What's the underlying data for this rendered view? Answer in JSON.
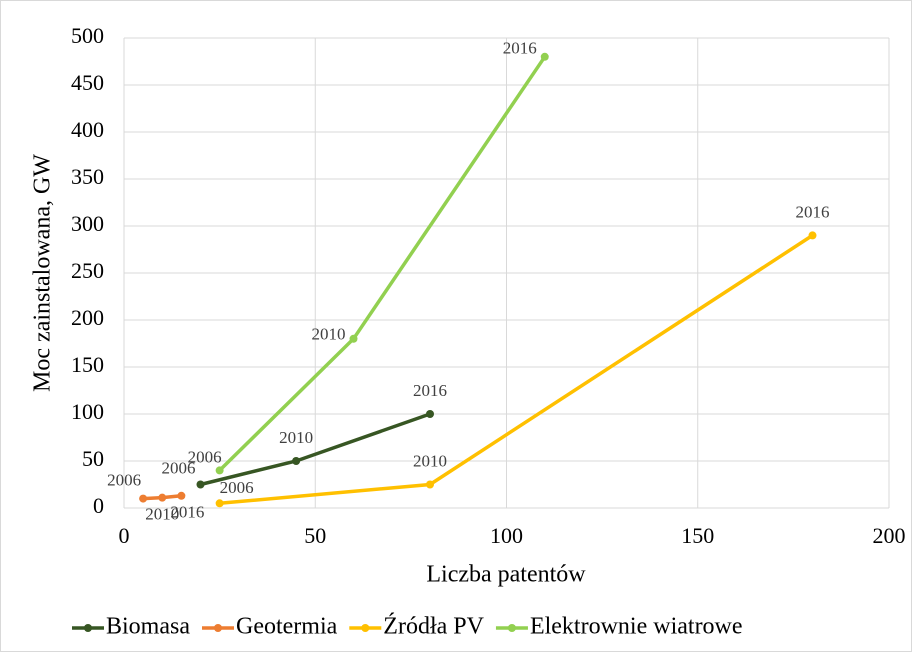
{
  "chart_data": {
    "type": "line",
    "x_label": "Liczba patentów",
    "y_label": "Moc zainstalowana, GW",
    "xlim": [
      0,
      200
    ],
    "xticks": [
      0,
      50,
      100,
      150,
      200
    ],
    "ylim": [
      0,
      500
    ],
    "yticks": [
      0,
      50,
      100,
      150,
      200,
      250,
      300,
      350,
      400,
      450,
      500
    ],
    "grid": true,
    "legend": "bottom",
    "series": [
      {
        "name": "Biomasa",
        "color": "#375623",
        "x": [
          20,
          45,
          80
        ],
        "values": [
          25,
          50,
          100
        ],
        "labels": [
          "2006",
          "2010",
          "2016"
        ]
      },
      {
        "name": "Geotermia",
        "color": "#ed7d31",
        "x": [
          5,
          10,
          15
        ],
        "values": [
          10,
          11,
          13
        ],
        "labels": [
          "2006",
          "2010",
          "2016"
        ]
      },
      {
        "name": "Źródła PV",
        "color": "#ffc000",
        "x": [
          25,
          80,
          180
        ],
        "values": [
          5,
          25,
          290
        ],
        "labels": [
          "2006",
          "2010",
          "2016"
        ]
      },
      {
        "name": "Elektrownie wiatrowe",
        "color": "#92d050",
        "x": [
          25,
          60,
          110
        ],
        "values": [
          40,
          180,
          480
        ],
        "labels": [
          "2006",
          "2010",
          "2016"
        ]
      }
    ]
  }
}
